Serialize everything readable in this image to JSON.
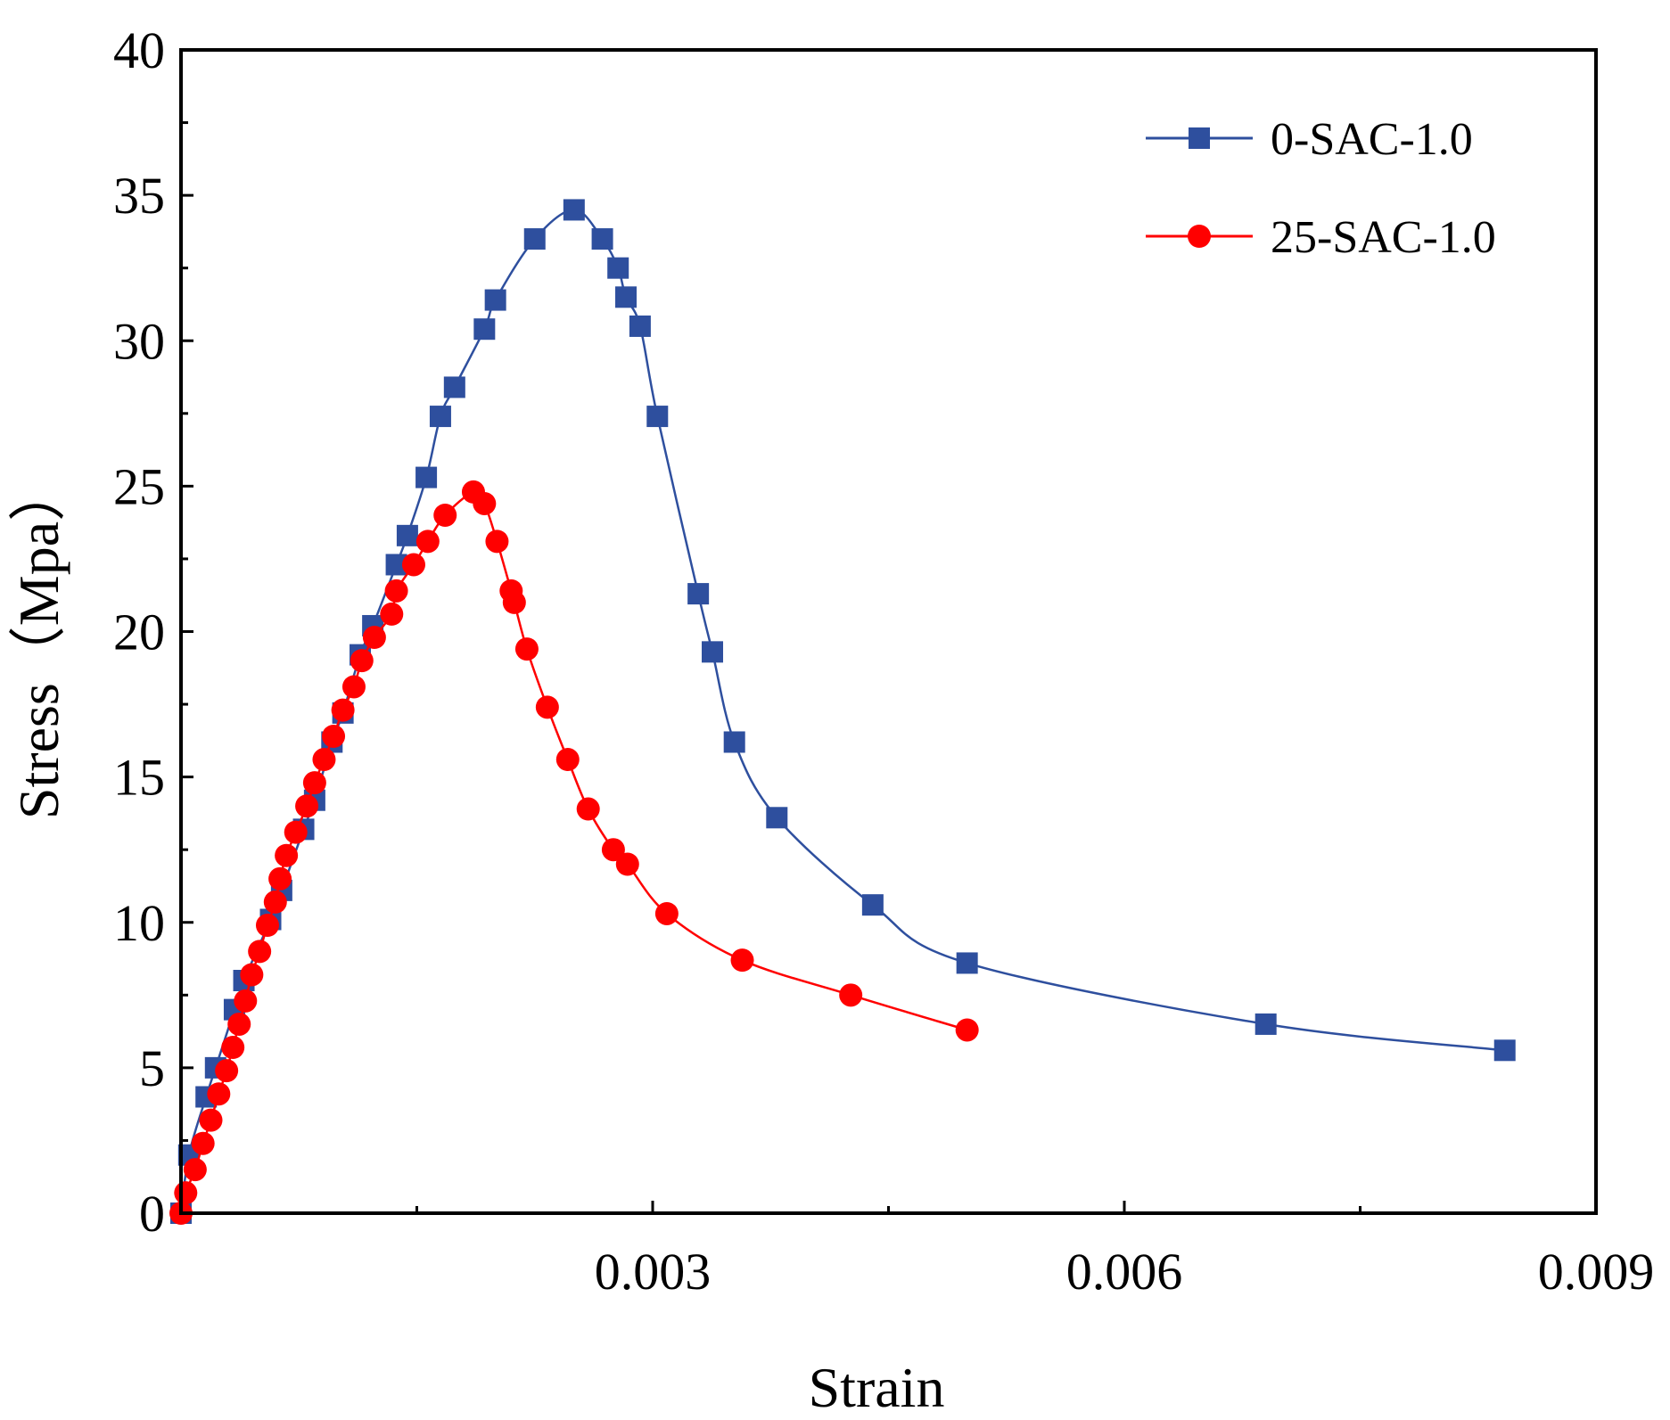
{
  "chart_data": {
    "type": "line",
    "title": "",
    "xlabel": "Strain",
    "ylabel": "Stress（Mpa）",
    "xlim": [
      0,
      0.009
    ],
    "ylim": [
      0,
      40
    ],
    "x_ticks": [
      {
        "value": 0.003,
        "label": "0.003"
      },
      {
        "value": 0.006,
        "label": "0.006"
      },
      {
        "value": 0.009,
        "label": "0.009"
      }
    ],
    "y_ticks": [
      {
        "value": 0,
        "label": "0"
      },
      {
        "value": 5,
        "label": "5"
      },
      {
        "value": 10,
        "label": "10"
      },
      {
        "value": 15,
        "label": "15"
      },
      {
        "value": 20,
        "label": "20"
      },
      {
        "value": 25,
        "label": "25"
      },
      {
        "value": 30,
        "label": "30"
      },
      {
        "value": 35,
        "label": "35"
      },
      {
        "value": 40,
        "label": "40"
      }
    ],
    "legend_position": "top-right",
    "series": [
      {
        "name": "0-SAC-1.0",
        "color": "#2E4F9E",
        "marker": "square",
        "points": [
          [
            0.0,
            0.0
          ],
          [
            5e-05,
            2.0
          ],
          [
            0.00016,
            4.0
          ],
          [
            0.00022,
            5.0
          ],
          [
            0.00034,
            7.0
          ],
          [
            0.0004,
            8.0
          ],
          [
            0.00057,
            10.1
          ],
          [
            0.00064,
            11.1
          ],
          [
            0.00078,
            13.2
          ],
          [
            0.00085,
            14.2
          ],
          [
            0.00096,
            16.2
          ],
          [
            0.00103,
            17.2
          ],
          [
            0.00114,
            19.2
          ],
          [
            0.00122,
            20.2
          ],
          [
            0.00137,
            22.3
          ],
          [
            0.00144,
            23.3
          ],
          [
            0.00156,
            25.3
          ],
          [
            0.00165,
            27.4
          ],
          [
            0.00174,
            28.4
          ],
          [
            0.00193,
            30.4
          ],
          [
            0.002,
            31.4
          ],
          [
            0.00225,
            33.5
          ],
          [
            0.0025,
            34.5
          ],
          [
            0.00268,
            33.5
          ],
          [
            0.00278,
            32.5
          ],
          [
            0.00283,
            31.5
          ],
          [
            0.00292,
            30.5
          ],
          [
            0.00303,
            27.4
          ],
          [
            0.00329,
            21.3
          ],
          [
            0.00338,
            19.3
          ],
          [
            0.00352,
            16.2
          ],
          [
            0.00379,
            13.6
          ],
          [
            0.0044,
            10.6
          ],
          [
            0.005,
            8.6
          ],
          [
            0.0069,
            6.5
          ],
          [
            0.00842,
            5.6
          ]
        ]
      },
      {
        "name": "25-SAC-1.0",
        "color": "#FF0000",
        "marker": "circle",
        "points": [
          [
            0.0,
            0.0
          ],
          [
            3e-05,
            0.7
          ],
          [
            9e-05,
            1.5
          ],
          [
            0.00014,
            2.4
          ],
          [
            0.00019,
            3.2
          ],
          [
            0.00024,
            4.1
          ],
          [
            0.00029,
            4.9
          ],
          [
            0.00033,
            5.7
          ],
          [
            0.00037,
            6.5
          ],
          [
            0.00041,
            7.3
          ],
          [
            0.00045,
            8.2
          ],
          [
            0.0005,
            9.0
          ],
          [
            0.00055,
            9.9
          ],
          [
            0.0006,
            10.7
          ],
          [
            0.00063,
            11.5
          ],
          [
            0.00067,
            12.3
          ],
          [
            0.00073,
            13.1
          ],
          [
            0.0008,
            14.0
          ],
          [
            0.00085,
            14.8
          ],
          [
            0.00091,
            15.6
          ],
          [
            0.00097,
            16.4
          ],
          [
            0.00103,
            17.3
          ],
          [
            0.0011,
            18.1
          ],
          [
            0.00115,
            19.0
          ],
          [
            0.00123,
            19.8
          ],
          [
            0.00134,
            20.6
          ],
          [
            0.00137,
            21.4
          ],
          [
            0.00148,
            22.3
          ],
          [
            0.00157,
            23.1
          ],
          [
            0.00168,
            24.0
          ],
          [
            0.00186,
            24.8
          ],
          [
            0.00193,
            24.4
          ],
          [
            0.00201,
            23.1
          ],
          [
            0.0021,
            21.4
          ],
          [
            0.00212,
            21.0
          ],
          [
            0.0022,
            19.4
          ],
          [
            0.00233,
            17.4
          ],
          [
            0.00246,
            15.6
          ],
          [
            0.00259,
            13.9
          ],
          [
            0.00275,
            12.5
          ],
          [
            0.00284,
            12.0
          ],
          [
            0.00309,
            10.3
          ],
          [
            0.00357,
            8.7
          ],
          [
            0.00426,
            7.5
          ],
          [
            0.005,
            6.3
          ]
        ]
      }
    ]
  }
}
